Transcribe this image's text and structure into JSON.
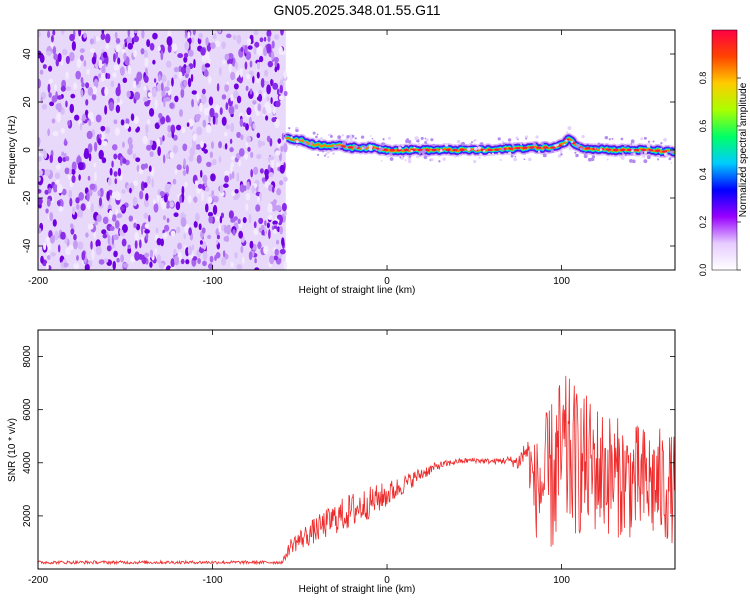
{
  "title": "GN05.2025.348.01.55.G11",
  "chart_data": [
    {
      "type": "heatmap",
      "name": "spectrogram",
      "xlabel": "Height of straight line (km)",
      "ylabel": "Frequency (Hz)",
      "xlim": [
        -200,
        165
      ],
      "ylim": [
        -50,
        50
      ],
      "xticks": [
        -200,
        -100,
        0,
        100
      ],
      "yticks": [
        -40,
        -20,
        0,
        20,
        40
      ],
      "noise_region_x": [
        -200,
        -58
      ],
      "signal_ridge": {
        "x": [
          -58,
          -50,
          -40,
          -30,
          -20,
          -10,
          0,
          10,
          30,
          60,
          80,
          95,
          100,
          104,
          110,
          130,
          150,
          165
        ],
        "frequency": [
          5,
          4,
          2,
          2,
          1,
          1,
          0,
          0,
          0,
          0,
          1,
          1,
          2,
          5,
          1,
          0,
          0,
          -1
        ]
      },
      "colorbar": {
        "label": "Normalized spectral amplitude",
        "range": [
          0,
          1
        ],
        "ticks": [
          0.0,
          0.2,
          0.4,
          0.6,
          0.8
        ],
        "colors": [
          "#ffffff",
          "#e6ccff",
          "#9900ff",
          "#0000ff",
          "#00ccff",
          "#00ff66",
          "#aaff00",
          "#ffcc00",
          "#ff4400",
          "#ff0044"
        ]
      }
    },
    {
      "type": "line",
      "name": "snr",
      "xlabel": "Height of straight line (km)",
      "ylabel": "SNR (10 * v/v)",
      "xlim": [
        -200,
        165
      ],
      "ylim": [
        0,
        9000
      ],
      "xticks": [
        -200,
        -100,
        0,
        100
      ],
      "yticks": [
        2000,
        4000,
        6000,
        8000
      ],
      "color": "#ee2a2a",
      "envelope": {
        "x": [
          -200,
          -60,
          -55,
          -50,
          -40,
          -30,
          -20,
          -10,
          0,
          10,
          20,
          30,
          40,
          50,
          60,
          70,
          75,
          80,
          85,
          90,
          95,
          100,
          105,
          110,
          120,
          130,
          140,
          150,
          160,
          165
        ],
        "mean": [
          250,
          250,
          900,
          1100,
          1500,
          1900,
          2200,
          2500,
          2800,
          3200,
          3600,
          3900,
          4050,
          4100,
          4050,
          4100,
          4000,
          4500,
          3000,
          3200,
          3500,
          4200,
          4200,
          4000,
          3800,
          3500,
          3300,
          3200,
          3100,
          3000
        ],
        "amp": [
          60,
          60,
          300,
          400,
          500,
          600,
          700,
          600,
          500,
          350,
          250,
          150,
          100,
          100,
          100,
          150,
          300,
          600,
          1800,
          2500,
          3000,
          3200,
          3000,
          2800,
          2500,
          2300,
          2200,
          2200,
          2200,
          2000
        ]
      }
    }
  ]
}
